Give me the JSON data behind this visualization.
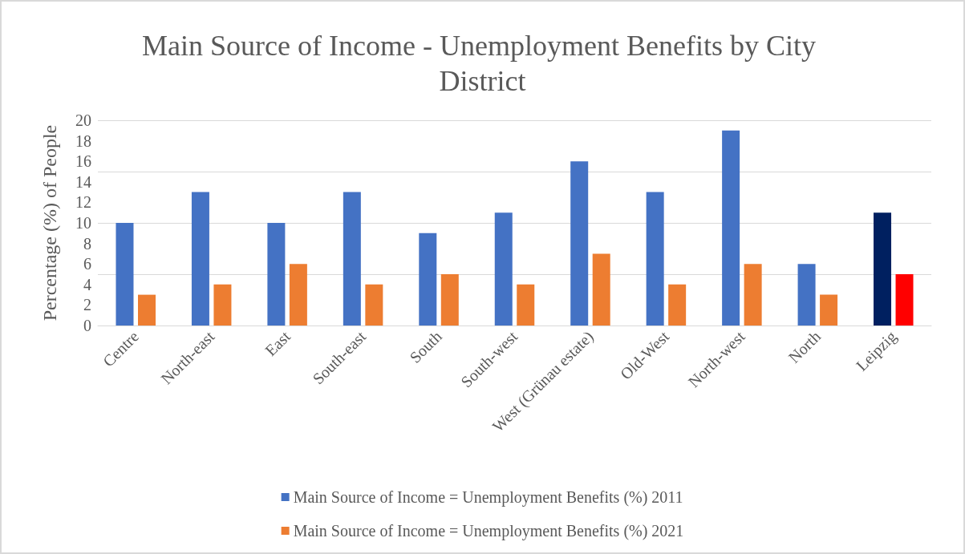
{
  "chart_data": {
    "type": "bar",
    "title": "Main Source of Income - Unemployment Benefits by City District",
    "ylabel": "Percentage (%) of People",
    "categories": [
      "Centre",
      "North-east",
      "East",
      "South-east",
      "South",
      "South-west",
      "West (Grünau estate)",
      "Old-West",
      "North-west",
      "North",
      "Leipzig"
    ],
    "series": [
      {
        "name": "Main Source of Income = Unemployment Benefits (%) 2011",
        "color": "#4472c4",
        "colors": [
          "#4472c4",
          "#4472c4",
          "#4472c4",
          "#4472c4",
          "#4472c4",
          "#4472c4",
          "#4472c4",
          "#4472c4",
          "#4472c4",
          "#4472c4",
          "#002060"
        ],
        "values": [
          10,
          13,
          10,
          13,
          9,
          11,
          16,
          13,
          19,
          6,
          11
        ]
      },
      {
        "name": "Main Source of Income = Unemployment Benefits (%) 2021",
        "color": "#ed7d31",
        "colors": [
          "#ed7d31",
          "#ed7d31",
          "#ed7d31",
          "#ed7d31",
          "#ed7d31",
          "#ed7d31",
          "#ed7d31",
          "#ed7d31",
          "#ed7d31",
          "#ed7d31",
          "#ff0000"
        ],
        "values": [
          3,
          4,
          6,
          4,
          5,
          4,
          7,
          4,
          6,
          3,
          5
        ]
      }
    ],
    "ylim": [
      0,
      20
    ],
    "yticks": [
      0,
      2,
      4,
      6,
      8,
      10,
      12,
      14,
      16,
      18,
      20
    ],
    "grid": "y",
    "legend": "bottom"
  }
}
